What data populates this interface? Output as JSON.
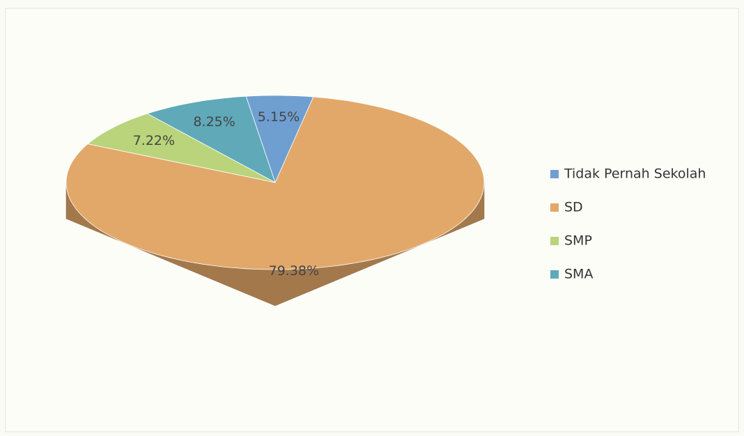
{
  "chart_data": {
    "type": "pie",
    "categories": [
      "Tidak Pernah Sekolah",
      "SD",
      "SMP",
      "SMA"
    ],
    "values": [
      5.15,
      79.38,
      7.22,
      8.25
    ],
    "value_labels": [
      "5.15%",
      "79.38%",
      "7.22%",
      "8.25%"
    ],
    "colors": [
      "#6f9fd0",
      "#e2a86a",
      "#b9d47a",
      "#5fa9b9"
    ],
    "legend": "right"
  }
}
